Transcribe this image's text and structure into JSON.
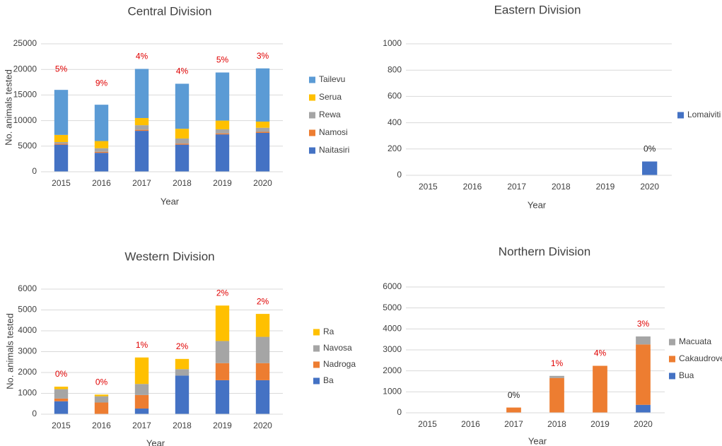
{
  "chart_data": [
    {
      "type": "bar",
      "stacked": true,
      "title": "Central Division",
      "xlabel": "Year",
      "ylabel": "No. animals tested",
      "ylim": [
        0,
        25000
      ],
      "yticks": [
        0,
        5000,
        10000,
        15000,
        20000,
        25000
      ],
      "categories": [
        "2015",
        "2016",
        "2017",
        "2018",
        "2019",
        "2020"
      ],
      "series": [
        {
          "name": "Naitasiri",
          "color": "#4472c4",
          "values": [
            5300,
            3700,
            8000,
            5300,
            7300,
            7600
          ]
        },
        {
          "name": "Namosi",
          "color": "#ed7d31",
          "values": [
            200,
            200,
            200,
            200,
            200,
            200
          ]
        },
        {
          "name": "Rewa",
          "color": "#a5a5a5",
          "values": [
            300,
            700,
            900,
            1000,
            800,
            800
          ]
        },
        {
          "name": "Serua",
          "color": "#ffc000",
          "values": [
            1400,
            1400,
            1400,
            1900,
            1700,
            1200
          ]
        },
        {
          "name": "Tailevu",
          "color": "#5b9bd5",
          "values": [
            8800,
            7100,
            9600,
            8800,
            9400,
            10400
          ]
        }
      ],
      "annotations": [
        "5%",
        "9%",
        "4%",
        "4%",
        "5%",
        "3%"
      ],
      "annotation_color": [
        "red",
        "red",
        "red",
        "red",
        "red",
        "red"
      ]
    },
    {
      "type": "bar",
      "stacked": true,
      "title": "Eastern Division",
      "xlabel": "Year",
      "ylabel": "",
      "ylim": [
        0,
        1000
      ],
      "yticks": [
        0,
        200,
        400,
        600,
        800,
        1000
      ],
      "categories": [
        "2015",
        "2016",
        "2017",
        "2018",
        "2019",
        "2020"
      ],
      "series": [
        {
          "name": "Lomaiviti",
          "color": "#4472c4",
          "values": [
            0,
            0,
            0,
            0,
            0,
            105
          ]
        }
      ],
      "annotations": [
        "",
        "",
        "",
        "",
        "",
        "0%"
      ],
      "annotation_color": [
        "black",
        "black",
        "black",
        "black",
        "black",
        "black"
      ]
    },
    {
      "type": "bar",
      "stacked": true,
      "title": "Western Division",
      "xlabel": "Year",
      "ylabel": "No. animals tested",
      "ylim": [
        0,
        6000
      ],
      "yticks": [
        0,
        1000,
        2000,
        3000,
        4000,
        5000,
        6000
      ],
      "categories": [
        "2015",
        "2016",
        "2017",
        "2018",
        "2019",
        "2020"
      ],
      "series": [
        {
          "name": "Ba",
          "color": "#4472c4",
          "values": [
            620,
            0,
            270,
            1850,
            1630,
            1630
          ]
        },
        {
          "name": "Nadroga",
          "color": "#ed7d31",
          "values": [
            130,
            560,
            650,
            0,
            820,
            820
          ]
        },
        {
          "name": "Navosa",
          "color": "#a5a5a5",
          "values": [
            450,
            300,
            530,
            310,
            1060,
            1260
          ]
        },
        {
          "name": "Ra",
          "color": "#ffc000",
          "values": [
            120,
            80,
            1270,
            490,
            1700,
            1100
          ]
        }
      ],
      "annotations": [
        "0%",
        "0%",
        "1%",
        "2%",
        "2%",
        "2%"
      ],
      "annotation_color": [
        "red",
        "red",
        "red",
        "red",
        "red",
        "red"
      ]
    },
    {
      "type": "bar",
      "stacked": true,
      "title": "Northern Division",
      "xlabel": "Year",
      "ylabel": "",
      "ylim": [
        0,
        6000
      ],
      "yticks": [
        0,
        1000,
        2000,
        3000,
        4000,
        5000,
        6000
      ],
      "categories": [
        "2015",
        "2016",
        "2017",
        "2018",
        "2019",
        "2020"
      ],
      "series": [
        {
          "name": "Bua",
          "color": "#4472c4",
          "values": [
            0,
            0,
            0,
            0,
            0,
            380
          ]
        },
        {
          "name": "Cakaudrove",
          "color": "#ed7d31",
          "values": [
            0,
            0,
            250,
            1660,
            2240,
            2880
          ]
        },
        {
          "name": "Macuata",
          "color": "#a5a5a5",
          "values": [
            0,
            0,
            0,
            100,
            0,
            380
          ]
        }
      ],
      "annotations": [
        "",
        "",
        "0%",
        "1%",
        "4%",
        "3%"
      ],
      "annotation_color": [
        "black",
        "black",
        "black",
        "red",
        "red",
        "red"
      ]
    }
  ]
}
